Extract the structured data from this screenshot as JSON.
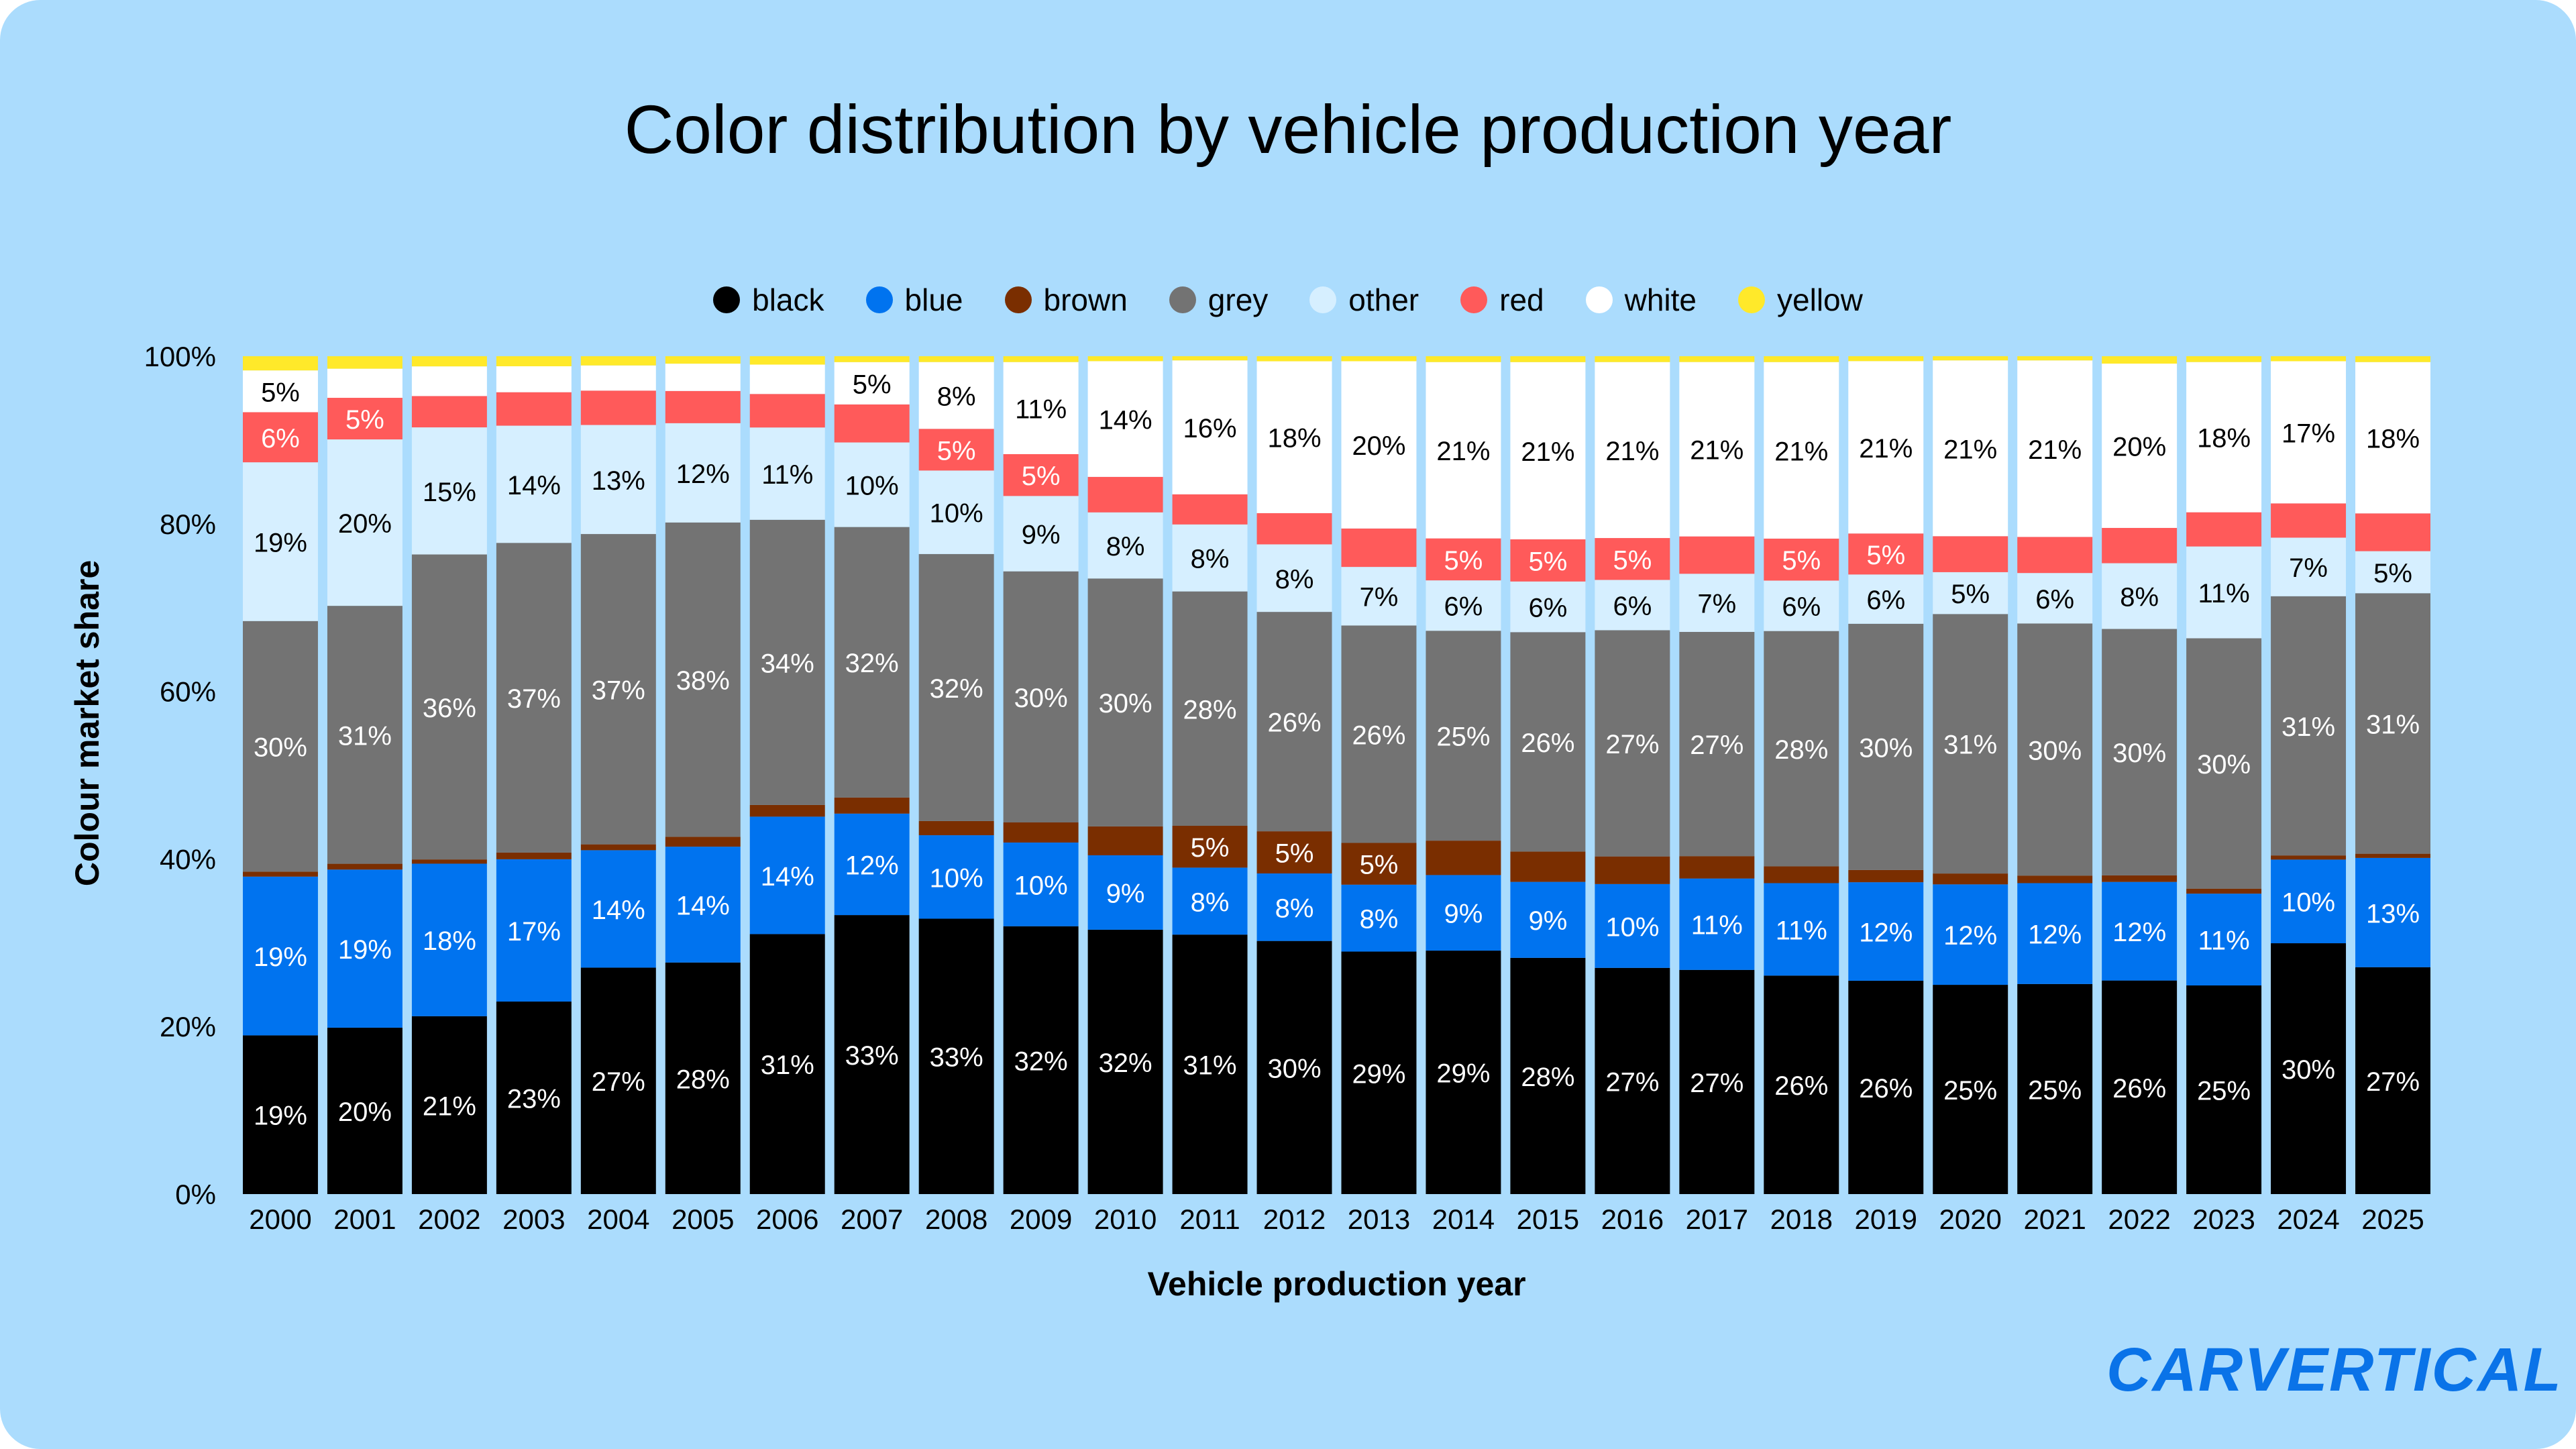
{
  "chart_data": {
    "type": "bar",
    "stacked": true,
    "title": "Color distribution by vehicle production year",
    "xlabel": "Vehicle production year",
    "ylabel": "Colour market share",
    "ylim": [
      0,
      100
    ],
    "yticks": [
      "0%",
      "20%",
      "40%",
      "60%",
      "80%",
      "100%"
    ],
    "legend_position": "top",
    "categories": [
      "2000",
      "2001",
      "2002",
      "2003",
      "2004",
      "2005",
      "2006",
      "2007",
      "2008",
      "2009",
      "2010",
      "2011",
      "2012",
      "2013",
      "2014",
      "2015",
      "2016",
      "2017",
      "2018",
      "2019",
      "2020",
      "2021",
      "2022",
      "2023",
      "2024",
      "2025"
    ],
    "series": [
      {
        "name": "black",
        "color": "#000000",
        "values": [
          19,
          20,
          21,
          23,
          27,
          28,
          31,
          33,
          33,
          32,
          32,
          31,
          30,
          29,
          29,
          28,
          27,
          27,
          26,
          26,
          25,
          25,
          26,
          25,
          30,
          27
        ]
      },
      {
        "name": "blue",
        "color": "#0073ef",
        "values": [
          19,
          19,
          18,
          17,
          14,
          14,
          14,
          12,
          10,
          10,
          9,
          8,
          8,
          8,
          9,
          9,
          10,
          11,
          11,
          12,
          12,
          12,
          12,
          11,
          10,
          13
        ]
      },
      {
        "name": "brown",
        "color": "#7a2e00",
        "values": [
          0.6,
          0.7,
          0.5,
          0.8,
          0.7,
          1.2,
          1.4,
          1.9,
          1.7,
          2.4,
          3.5,
          5,
          5,
          5,
          4.1,
          3.6,
          3.3,
          2.7,
          2.0,
          1.5,
          1.3,
          0.9,
          0.8,
          0.6,
          0.5,
          0.5
        ]
      },
      {
        "name": "grey",
        "color": "#737373",
        "values": [
          30,
          31,
          36,
          37,
          37,
          38,
          34,
          32,
          32,
          30,
          30,
          28,
          26,
          26,
          25,
          26,
          27,
          27,
          28,
          30,
          31,
          30,
          30,
          30,
          31,
          31
        ]
      },
      {
        "name": "other",
        "color": "#d6efff",
        "values": [
          19,
          20,
          15,
          14,
          13,
          12,
          11,
          10,
          10,
          9,
          8,
          8,
          8,
          7,
          6,
          6,
          6,
          7,
          6,
          6,
          5,
          6,
          8,
          11,
          7,
          5
        ]
      },
      {
        "name": "red",
        "color": "#ff5a5a",
        "values": [
          6,
          5,
          3.7,
          4.0,
          4.1,
          3.9,
          4.0,
          4.5,
          5,
          5,
          4.3,
          3.6,
          3.7,
          4.6,
          5,
          5,
          5,
          4.5,
          5,
          5,
          4.3,
          4.3,
          4.3,
          4.1,
          4.1,
          4.5
        ]
      },
      {
        "name": "white",
        "color": "#ffffff",
        "values": [
          5,
          3.5,
          3.5,
          3.1,
          3.0,
          3.3,
          3.5,
          5,
          8,
          11,
          14,
          16,
          18,
          20,
          21,
          21,
          21,
          21,
          21,
          21,
          21,
          21,
          20,
          18,
          17,
          18
        ]
      },
      {
        "name": "yellow",
        "color": "#ffe92a",
        "values": [
          1.7,
          1.5,
          1.2,
          1.2,
          1.1,
          0.9,
          1.0,
          0.7,
          0.7,
          0.7,
          0.6,
          0.5,
          0.6,
          0.6,
          0.7,
          0.7,
          0.7,
          0.7,
          0.7,
          0.6,
          0.5,
          0.5,
          0.9,
          0.7,
          0.6,
          0.7
        ]
      }
    ]
  },
  "brand": {
    "logo_text": "CARVERTICAL"
  }
}
